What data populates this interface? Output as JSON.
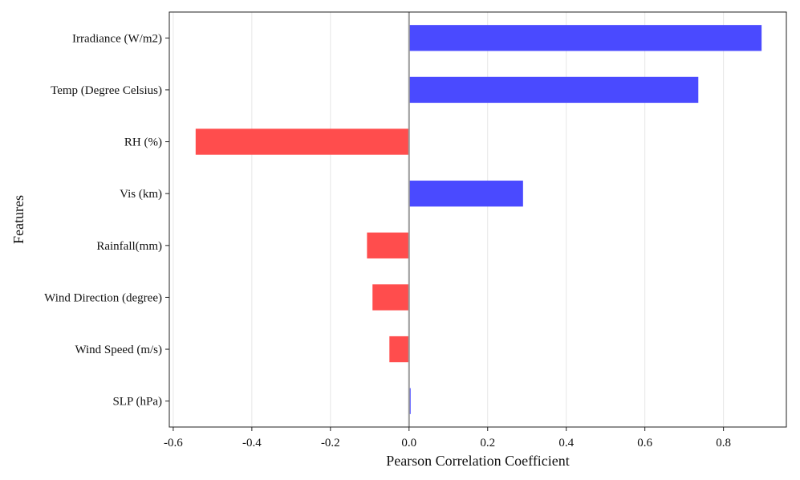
{
  "chart_data": {
    "type": "bar",
    "orientation": "horizontal",
    "title": "",
    "xlabel": "Pearson Correlation Coefficient",
    "ylabel": "Features",
    "xlim": [
      -0.61,
      0.96
    ],
    "x_ticks": [
      -0.6,
      -0.4,
      -0.2,
      0.0,
      0.2,
      0.4,
      0.6,
      0.8
    ],
    "x_tick_labels": [
      "-0.6",
      "-0.4",
      "-0.2",
      "0.0",
      "0.2",
      "0.4",
      "0.6",
      "0.8"
    ],
    "grid": "vertical",
    "zero_line": true,
    "legend": "none",
    "categories": [
      "Irradiance (W/m2)",
      "Temp (Degree Celsius)",
      "RH (%)",
      "Vis (km)",
      "Rainfall(mm)",
      "Wind Direction (degree)",
      "Wind Speed (m/s)",
      "SLP (hPa)"
    ],
    "values": [
      0.897,
      0.736,
      -0.543,
      0.29,
      -0.107,
      -0.093,
      -0.05,
      0.004
    ],
    "colors": {
      "positive": "#4a4aff",
      "negative": "#ff4d4d",
      "grid": "#e6e6e6",
      "zero_line": "#999999",
      "frame": "#222222"
    }
  }
}
